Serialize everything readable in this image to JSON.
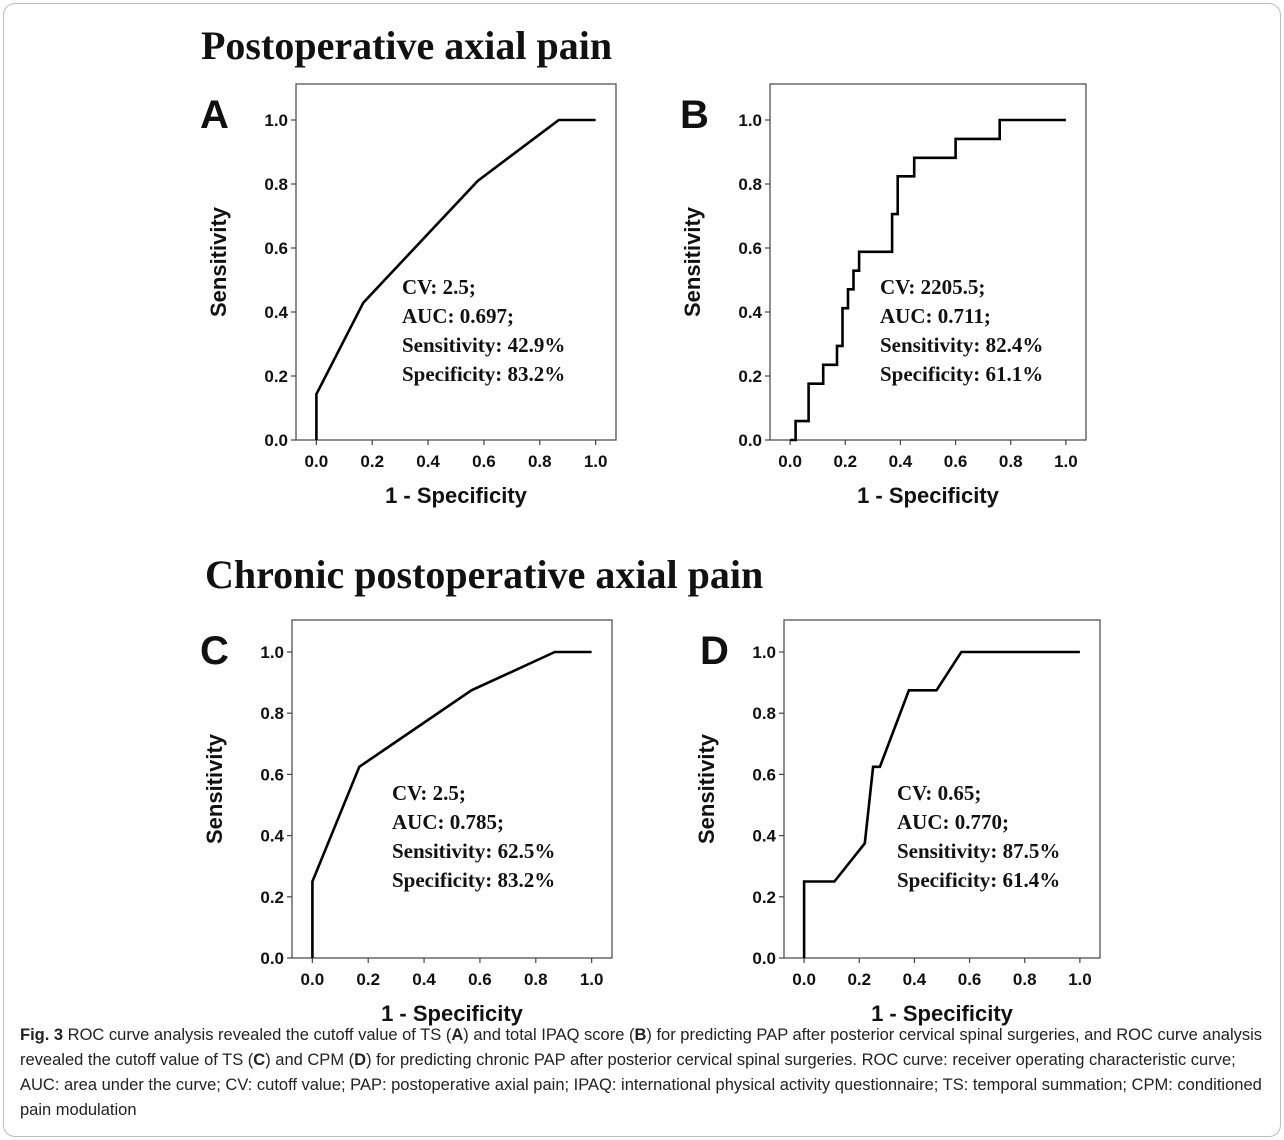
{
  "section_titles": {
    "top": "Postoperative axial pain",
    "bottom": "Chronic postoperative axial pain"
  },
  "caption": {
    "label": "Fig. 3",
    "parts": [
      " ROC curve analysis revealed the cutoff value of TS (",
      "A",
      ") and total IPAQ score (",
      "B",
      ") for predicting PAP after posterior cervical spinal surgeries, and ROC curve analysis revealed the cutoff value of TS (",
      "C",
      ") and CPM (",
      "D",
      ") for predicting chronic PAP after posterior cervical spinal surgeries. ROC curve: receiver operating characteristic curve; AUC: area under the curve; CV: cutoff value; PAP: postoperative axial pain; IPAQ: international physical activity questionnaire; TS: temporal summation; CPM: conditioned pain modulation"
    ]
  },
  "chart_data": [
    {
      "type": "line",
      "panel": "A",
      "xlabel": "1 - Specificity",
      "ylabel": "Sensitivity",
      "xlim": [
        0,
        1
      ],
      "ylim": [
        0,
        1
      ],
      "xticks": [
        "0.0",
        "0.2",
        "0.4",
        "0.6",
        "0.8",
        "1.0"
      ],
      "yticks": [
        "0.0",
        "0.2",
        "0.4",
        "0.6",
        "0.8",
        "1.0"
      ],
      "grid": false,
      "series": [
        {
          "x": [
            0,
            0,
            0.168,
            0.578,
            0.868,
            1.0
          ],
          "y": [
            0,
            0.143,
            0.429,
            0.81,
            1.0,
            1.0
          ]
        }
      ],
      "annotation": [
        "CV: 2.5;",
        "AUC: 0.697;",
        "Sensitivity: 42.9%",
        "Specificity: 83.2%"
      ]
    },
    {
      "type": "line",
      "panel": "B",
      "xlabel": "1 - Specificity",
      "ylabel": "Sensitivity",
      "xlim": [
        0,
        1
      ],
      "ylim": [
        0,
        1
      ],
      "xticks": [
        "0.0",
        "0.2",
        "0.4",
        "0.6",
        "0.8",
        "1.0"
      ],
      "yticks": [
        "0.0",
        "0.2",
        "0.4",
        "0.6",
        "0.8",
        "1.0"
      ],
      "grid": false,
      "series": [
        {
          "x": [
            0,
            0.02,
            0.02,
            0.067,
            0.067,
            0.12,
            0.12,
            0.17,
            0.17,
            0.19,
            0.19,
            0.21,
            0.21,
            0.23,
            0.23,
            0.25,
            0.25,
            0.37,
            0.37,
            0.39,
            0.39,
            0.45,
            0.45,
            0.6,
            0.6,
            0.76,
            0.76,
            1.0
          ],
          "y": [
            0,
            0,
            0.059,
            0.059,
            0.176,
            0.176,
            0.235,
            0.235,
            0.294,
            0.294,
            0.412,
            0.412,
            0.471,
            0.471,
            0.529,
            0.529,
            0.588,
            0.588,
            0.706,
            0.706,
            0.824,
            0.824,
            0.882,
            0.882,
            0.941,
            0.941,
            1.0,
            1.0
          ]
        }
      ],
      "annotation": [
        "CV: 2205.5;",
        "AUC: 0.711;",
        "Sensitivity: 82.4%",
        "Specificity: 61.1%"
      ]
    },
    {
      "type": "line",
      "panel": "C",
      "xlabel": "1 - Specificity",
      "ylabel": "Sensitivity",
      "xlim": [
        0,
        1
      ],
      "ylim": [
        0,
        1
      ],
      "xticks": [
        "0.0",
        "0.2",
        "0.4",
        "0.6",
        "0.8",
        "1.0"
      ],
      "yticks": [
        "0.0",
        "0.2",
        "0.4",
        "0.6",
        "0.8",
        "1.0"
      ],
      "grid": false,
      "series": [
        {
          "x": [
            0,
            0,
            0.168,
            0.57,
            0.868,
            1.0
          ],
          "y": [
            0,
            0.25,
            0.625,
            0.875,
            1.0,
            1.0
          ]
        }
      ],
      "annotation": [
        "CV: 2.5;",
        "AUC: 0.785;",
        "Sensitivity: 62.5%",
        "Specificity: 83.2%"
      ]
    },
    {
      "type": "line",
      "panel": "D",
      "xlabel": "1 - Specificity",
      "ylabel": "Sensitivity",
      "xlim": [
        0,
        1
      ],
      "ylim": [
        0,
        1
      ],
      "xticks": [
        "0.0",
        "0.2",
        "0.4",
        "0.6",
        "0.8",
        "1.0"
      ],
      "yticks": [
        "0.0",
        "0.2",
        "0.4",
        "0.6",
        "0.8",
        "1.0"
      ],
      "grid": false,
      "series": [
        {
          "x": [
            0,
            0,
            0.11,
            0.22,
            0.25,
            0.275,
            0.38,
            0.48,
            0.57,
            1.0
          ],
          "y": [
            0,
            0.25,
            0.25,
            0.375,
            0.625,
            0.625,
            0.875,
            0.875,
            1.0,
            1.0
          ]
        }
      ],
      "annotation": [
        "CV: 0.65;",
        "AUC: 0.770;",
        "Sensitivity: 87.5%",
        "Specificity: 61.4%"
      ]
    }
  ]
}
